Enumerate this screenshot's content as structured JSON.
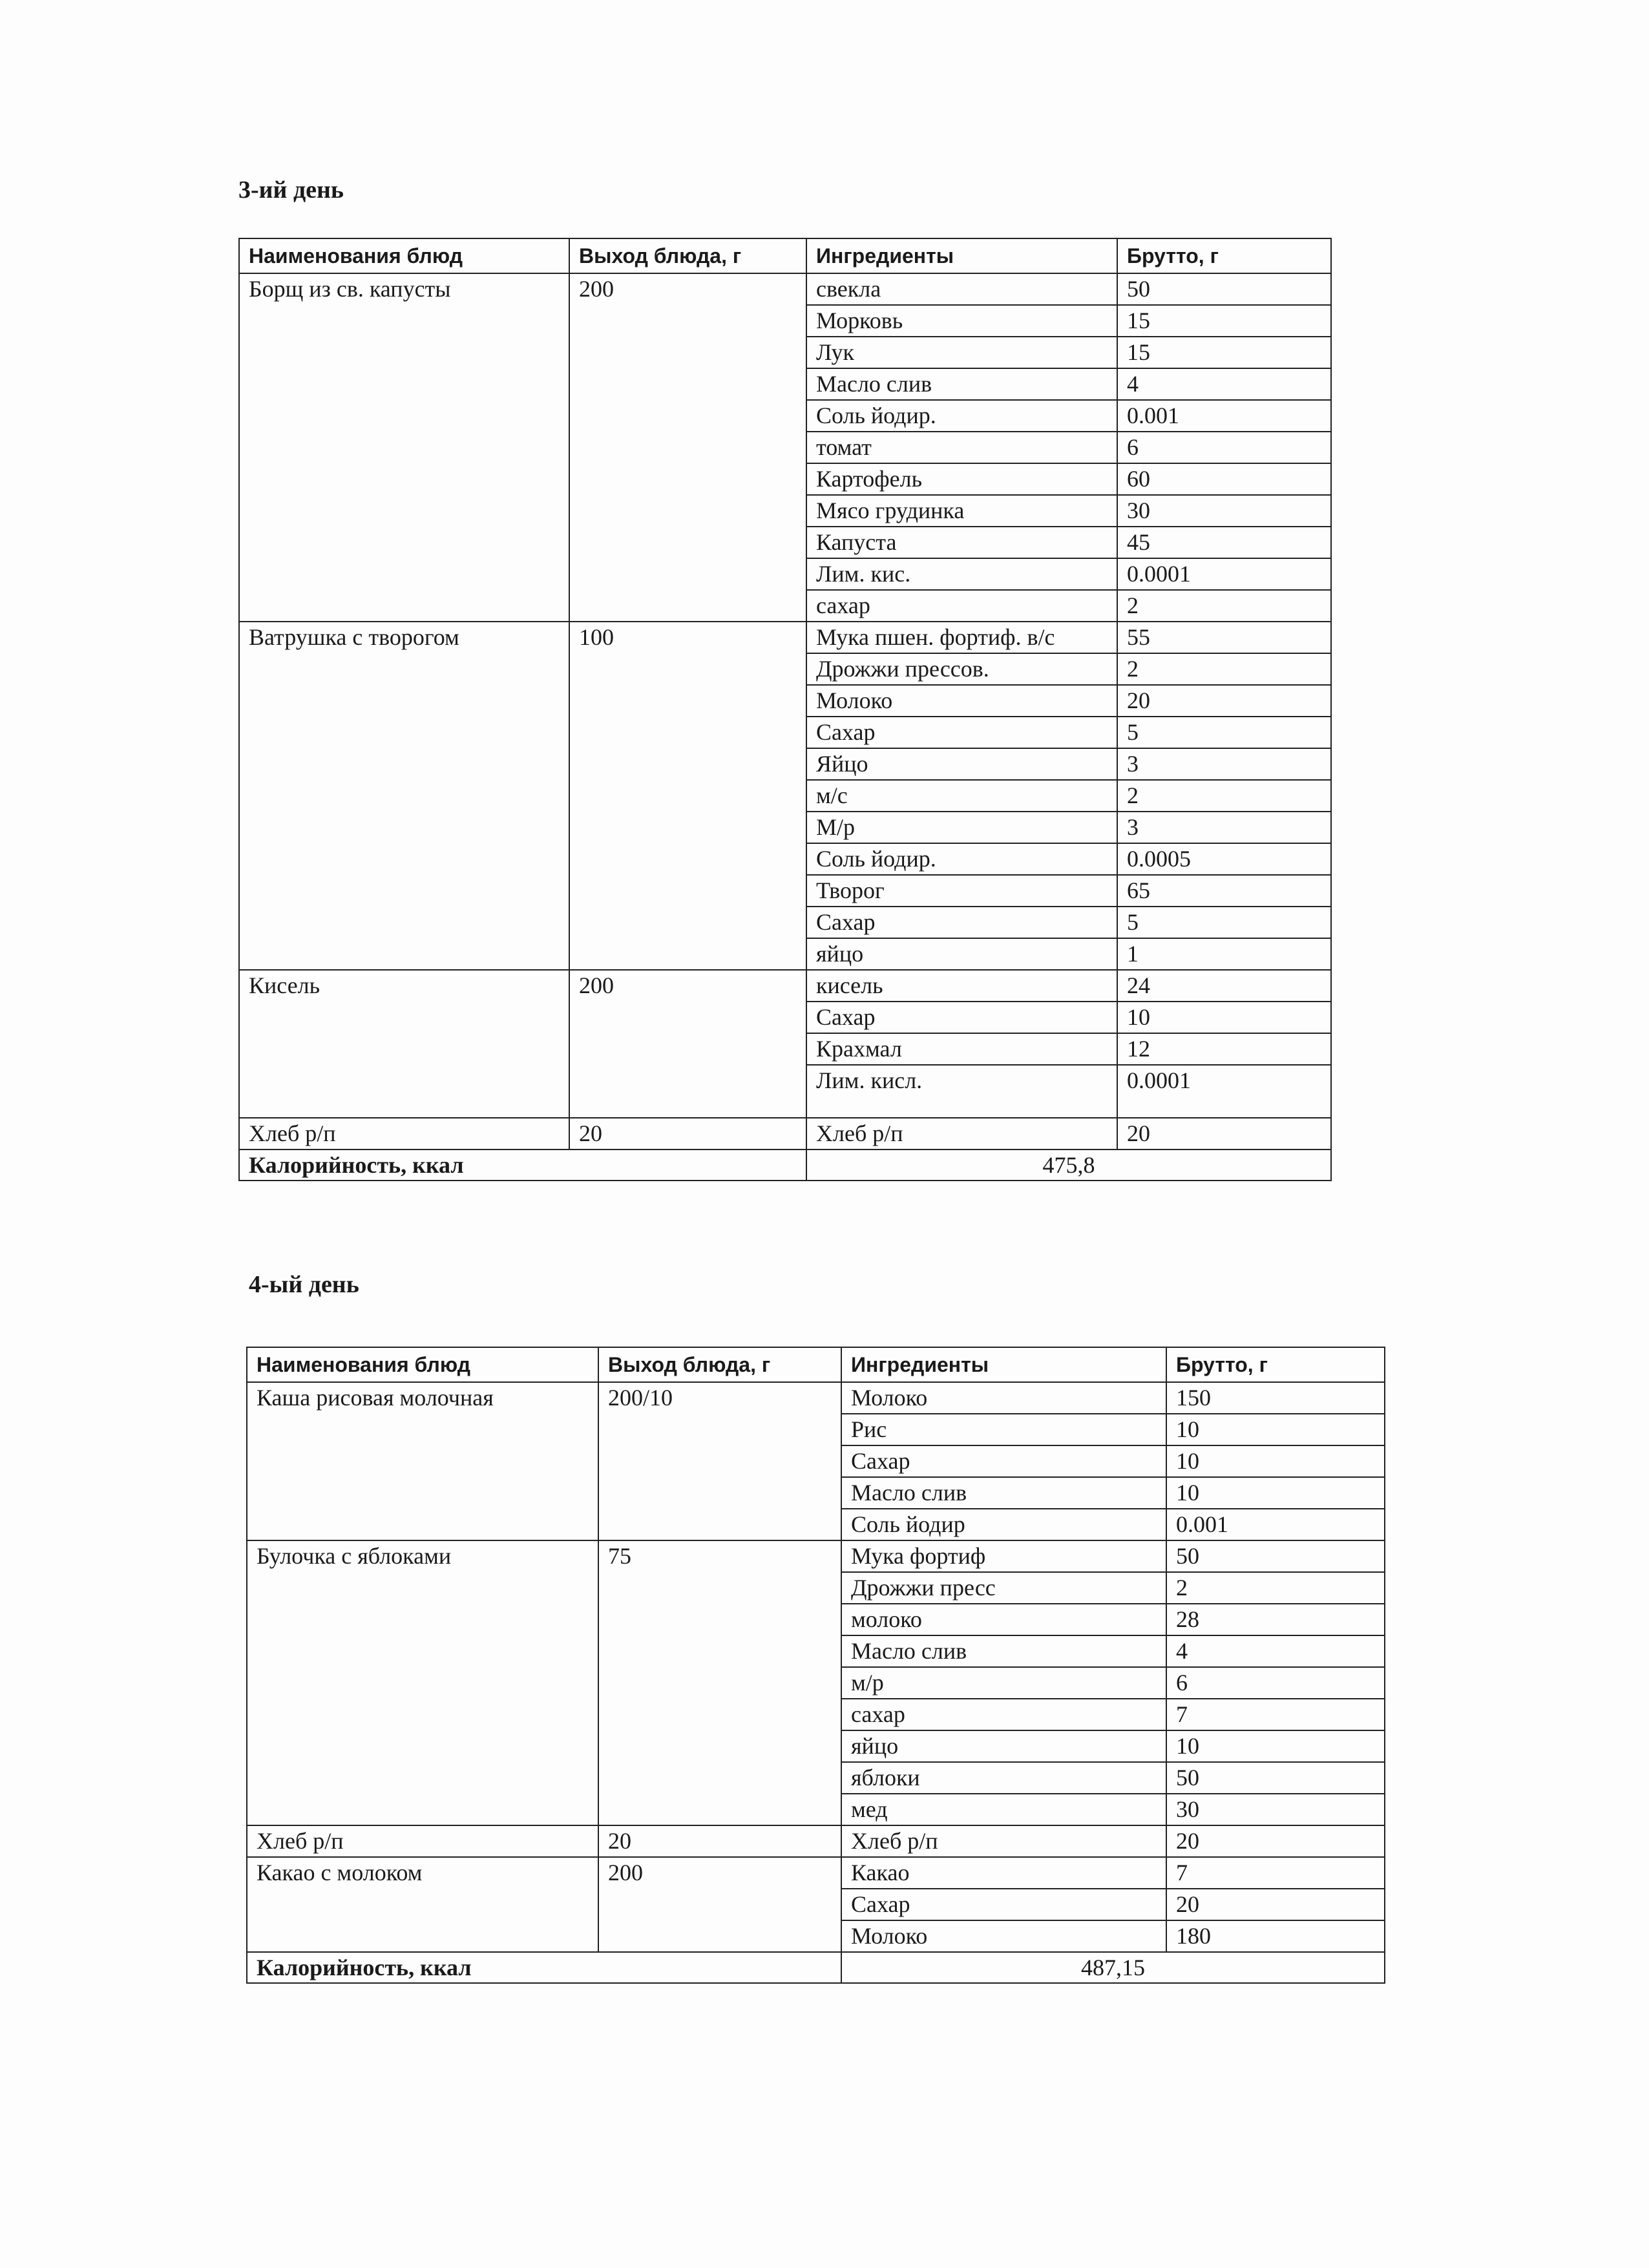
{
  "headers": {
    "dish": "Наименования блюд",
    "yield": "Выход блюда, г",
    "ingredients": "Ингредиенты",
    "gross": "Брутто, г"
  },
  "days": [
    {
      "title": "3-ий день",
      "dishes": [
        {
          "name": "Борщ из св. капусты",
          "yield": "200",
          "ingredients": [
            [
              "свекла",
              "50"
            ],
            [
              "Морковь",
              "15"
            ],
            [
              "Лук",
              "15"
            ],
            [
              "Масло слив",
              "4"
            ],
            [
              "Соль йодир.",
              "0.001"
            ],
            [
              "томат",
              "6"
            ],
            [
              "Картофель",
              "60"
            ],
            [
              "Мясо грудинка",
              "30"
            ],
            [
              "Капуста",
              "45"
            ],
            [
              "Лим. кис.",
              "0.0001"
            ],
            [
              "сахар",
              "2"
            ]
          ]
        },
        {
          "name": "Ватрушка с творогом",
          "yield": "100",
          "ingredients": [
            [
              "Мука пшен. фортиф. в/с",
              "55"
            ],
            [
              "Дрожжи прессов.",
              "2"
            ],
            [
              "Молоко",
              "20"
            ],
            [
              "Сахар",
              "5"
            ],
            [
              "Яйцо",
              "3"
            ],
            [
              "м/с",
              "2"
            ],
            [
              "М/р",
              "3"
            ],
            [
              "Соль йодир.",
              "0.0005"
            ],
            [
              "Творог",
              "65"
            ],
            [
              "Сахар",
              "5"
            ],
            [
              "яйцо",
              "1"
            ]
          ]
        },
        {
          "name": "Кисель",
          "yield": "200",
          "ingredients": [
            [
              "кисель",
              "24"
            ],
            [
              "Сахар",
              "10"
            ],
            [
              "Крахмал",
              "12"
            ],
            [
              "Лим. кисл.",
              "0.0001"
            ]
          ]
        },
        {
          "name": "Хлеб р/п",
          "yield": "20",
          "ingredients": [
            [
              "Хлеб р/п",
              "20"
            ]
          ]
        }
      ],
      "calorie_label": "Калорийность, ккал",
      "calorie_value": "475,8"
    },
    {
      "title": "4-ый день",
      "dishes": [
        {
          "name": "Каша рисовая молочная",
          "yield": "200/10",
          "ingredients": [
            [
              "Молоко",
              "150"
            ],
            [
              "Рис",
              "10"
            ],
            [
              "Сахар",
              "10"
            ],
            [
              "Масло слив",
              "10"
            ],
            [
              "Соль йодир",
              "0.001"
            ]
          ]
        },
        {
          "name": "Булочка с яблоками",
          "yield": "75",
          "ingredients": [
            [
              "Мука фортиф",
              "50"
            ],
            [
              "Дрожжи пресс",
              "2"
            ],
            [
              "молоко",
              "28"
            ],
            [
              "Масло слив",
              "4"
            ],
            [
              "м/р",
              "6"
            ],
            [
              "сахар",
              "7"
            ],
            [
              "яйцо",
              "10"
            ],
            [
              "яблоки",
              "50"
            ],
            [
              "мед",
              "30"
            ]
          ]
        },
        {
          "name": "Хлеб р/п",
          "yield": "20",
          "ingredients": [
            [
              "Хлеб р/п",
              "20"
            ]
          ]
        },
        {
          "name": "Какао с молоком",
          "yield": "200",
          "ingredients": [
            [
              "Какао",
              "7"
            ],
            [
              "Сахар",
              "20"
            ],
            [
              "Молоко",
              "180"
            ]
          ]
        }
      ],
      "calorie_label": "Калорийность, ккал",
      "calorie_value": "487,15"
    }
  ]
}
